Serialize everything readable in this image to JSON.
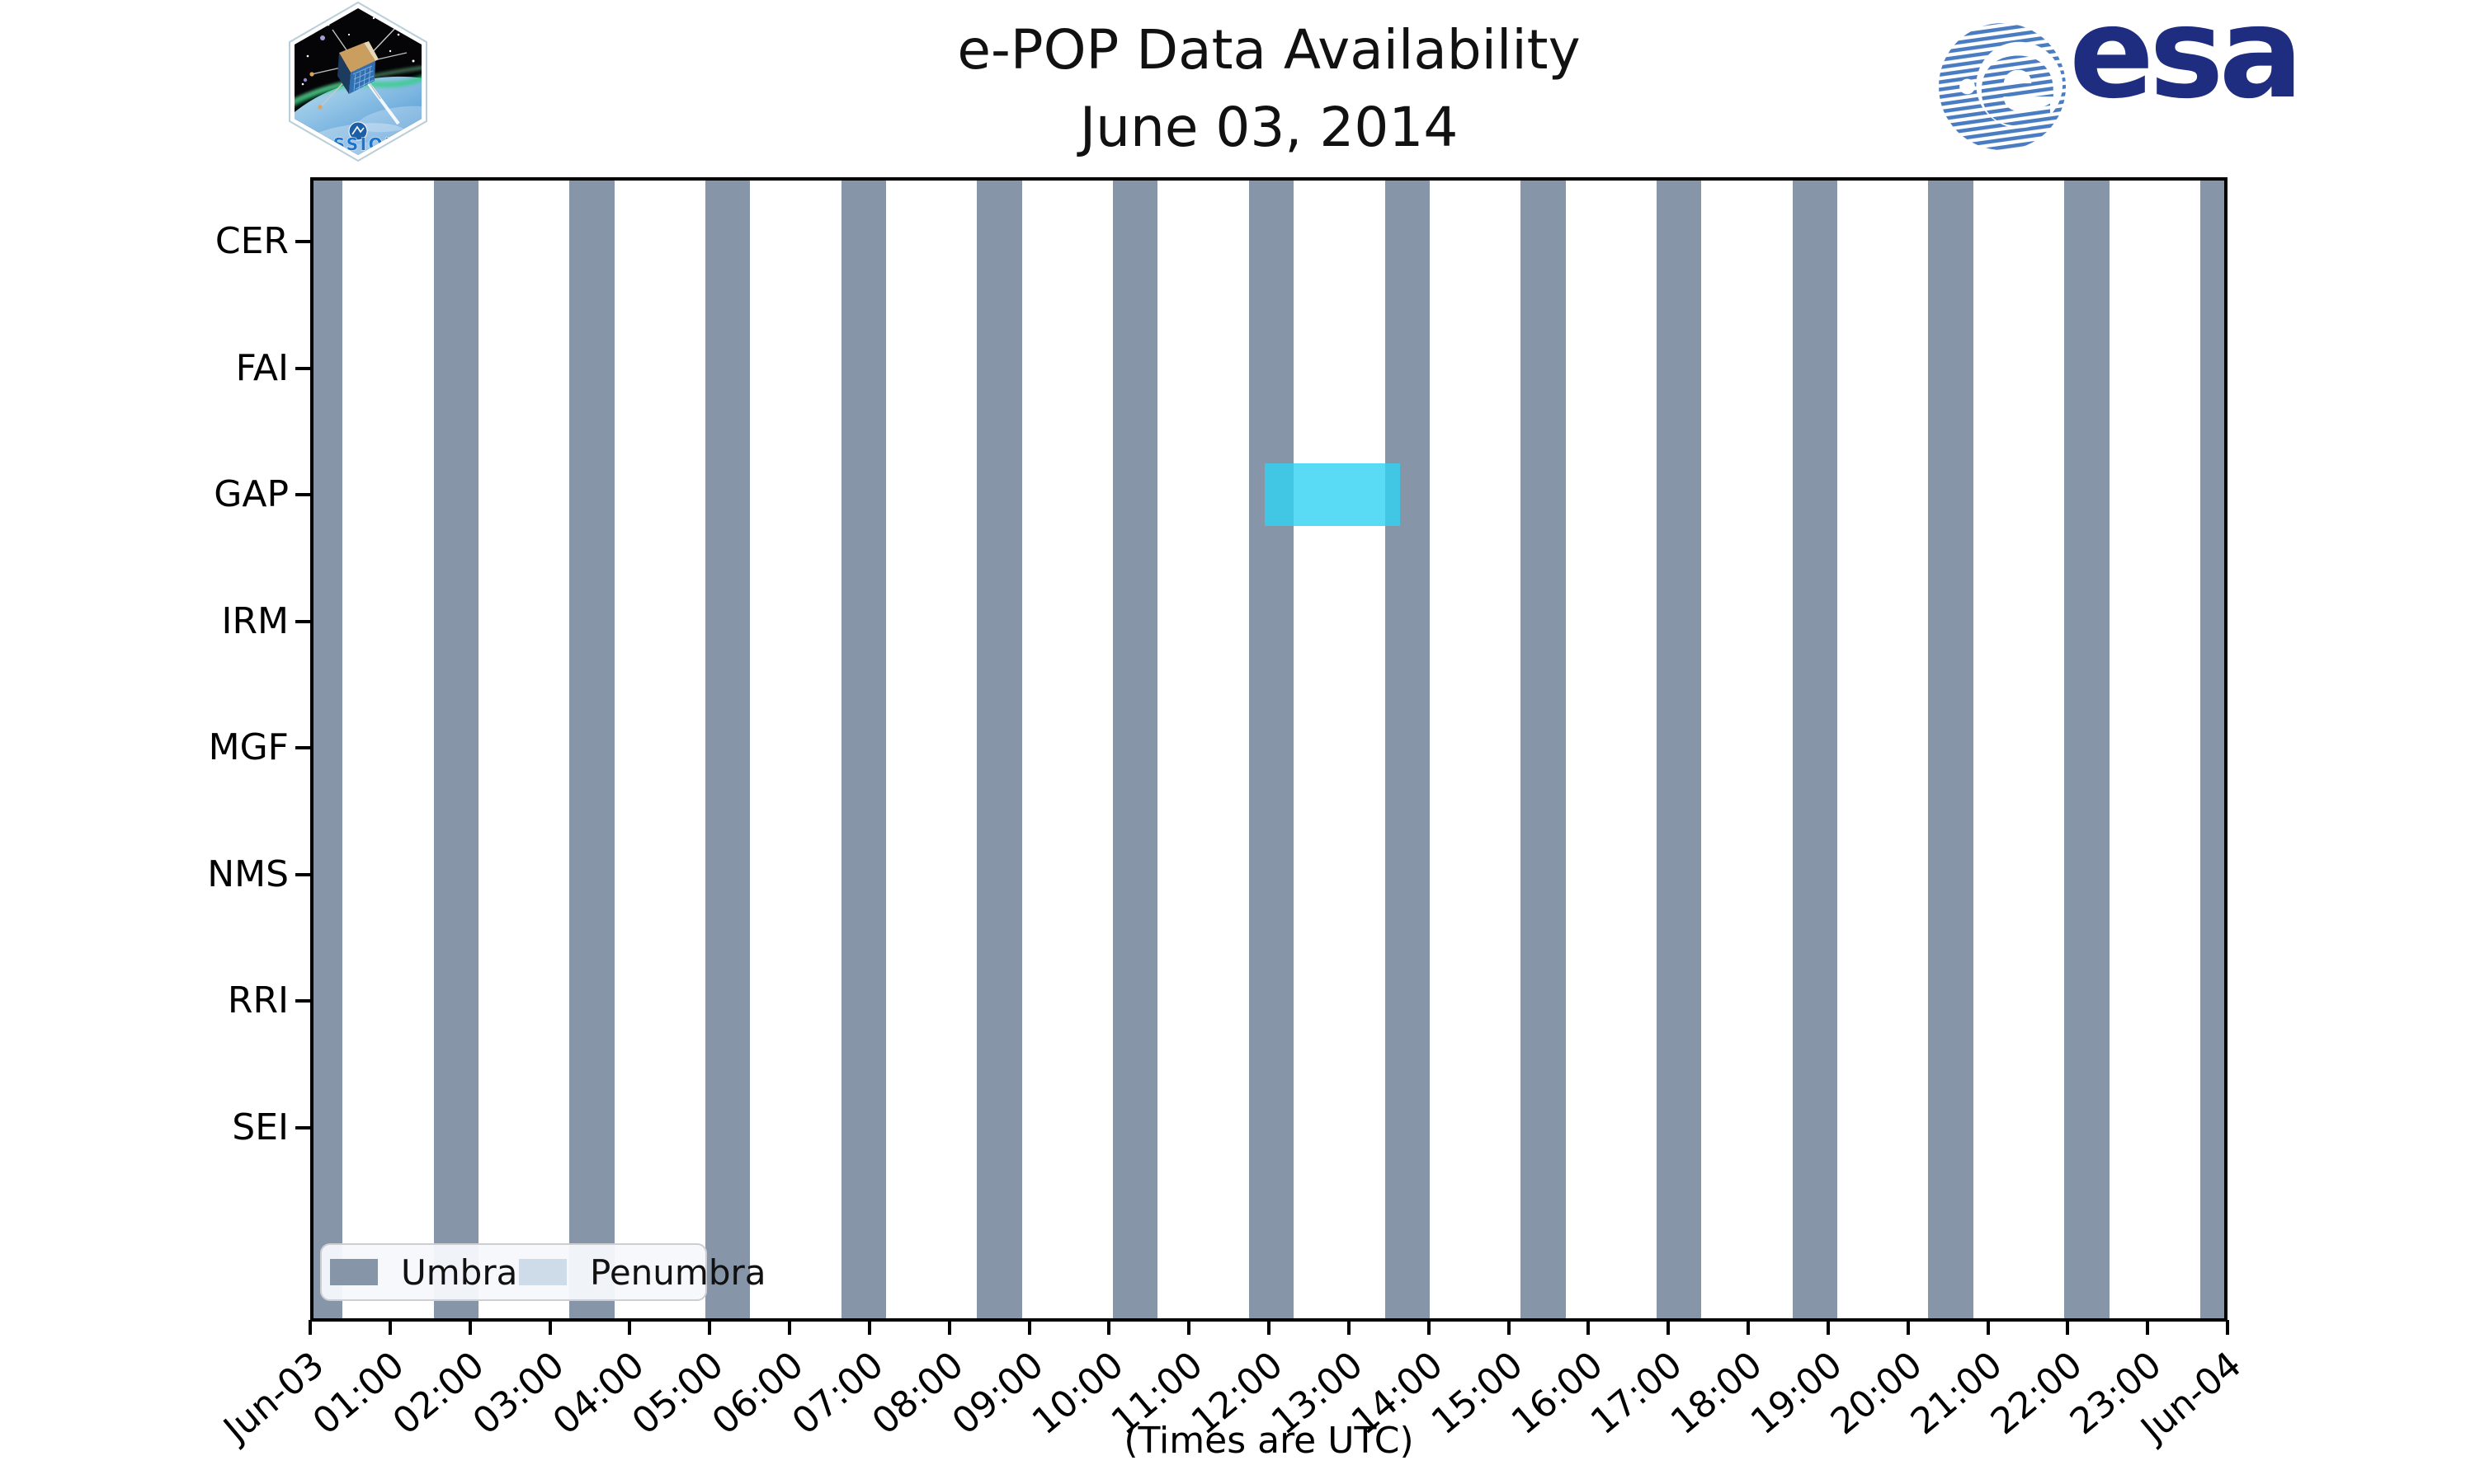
{
  "header": {
    "title_line1": "e-POP Data Availability",
    "title_line2": "June 03, 2014",
    "cassiope_patch_label": "CASSIOPE",
    "esa_logo_text": "esa"
  },
  "chart_data": {
    "type": "bar",
    "title": "e-POP Data Availability",
    "subtitle": "June 03, 2014",
    "xlabel": "(Times are UTC)",
    "x_axis": {
      "range_hours": [
        0,
        24
      ],
      "tick_labels": [
        "Jun-03",
        "01:00",
        "02:00",
        "03:00",
        "04:00",
        "05:00",
        "06:00",
        "07:00",
        "08:00",
        "09:00",
        "10:00",
        "11:00",
        "12:00",
        "13:00",
        "14:00",
        "15:00",
        "16:00",
        "17:00",
        "18:00",
        "19:00",
        "20:00",
        "21:00",
        "22:00",
        "23:00",
        "Jun-04"
      ]
    },
    "instruments": [
      "CER",
      "FAI",
      "GAP",
      "IRM",
      "MGF",
      "NMS",
      "RRI",
      "SEI"
    ],
    "umbra_intervals_hours": [
      [
        0.0,
        0.36
      ],
      [
        1.51,
        2.07
      ],
      [
        3.21,
        3.78
      ],
      [
        4.92,
        5.48
      ],
      [
        6.63,
        7.19
      ],
      [
        8.33,
        8.9
      ],
      [
        10.04,
        10.6
      ],
      [
        11.75,
        12.31
      ],
      [
        13.46,
        14.02
      ],
      [
        15.16,
        15.73
      ],
      [
        16.87,
        17.43
      ],
      [
        18.58,
        19.14
      ],
      [
        20.28,
        20.85
      ],
      [
        21.99,
        22.56
      ],
      [
        23.7,
        24.0
      ]
    ],
    "data_intervals": [
      {
        "instrument": "GAP",
        "start_hour": 11.95,
        "end_hour": 13.65,
        "color": "rgba(48,210,242,0.8)"
      }
    ],
    "legend": [
      {
        "label": "Umbra",
        "color": "#8695a8"
      },
      {
        "label": "Penumbra",
        "color": "#cedcea"
      }
    ],
    "colors": {
      "umbra": "#8695a8",
      "penumbra": "#cedcea",
      "gap_bar": "#30d2f2",
      "axis": "#000000",
      "esa_blue": "#1f2d80",
      "esa_stripe": "#4a7cc2"
    },
    "layout_hints": {
      "grid": "off",
      "legend_position": "lower left",
      "bar_orientation": "vertical-span"
    }
  }
}
